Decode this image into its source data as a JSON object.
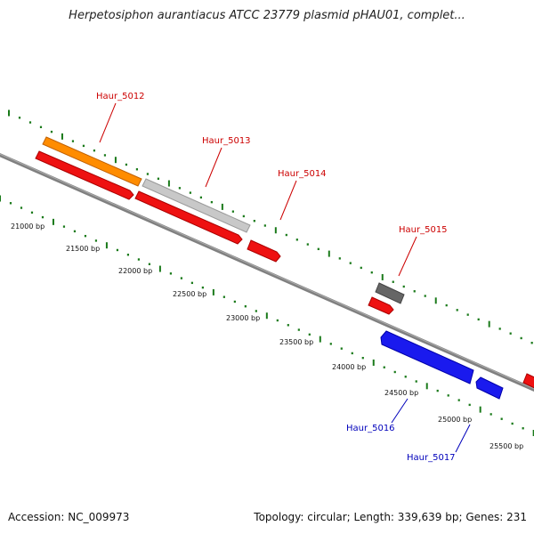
{
  "title": "Herpetosiphon aurantiacus ATCC 23779 plasmid pHAU01, complet...",
  "footer": {
    "accession": "Accession: NC_009973",
    "summary": "Topology: circular; Length: 339,639 bp; Genes: 231"
  },
  "colors": {
    "backbone": "#808080",
    "tick": "#1a7a1a",
    "label_forward": "#cc0000",
    "label_reverse": "#0000bb",
    "orange": "#ff8c00",
    "light_gray": "#c8c8c8",
    "red": "#ee1111",
    "dark_gray": "#666666",
    "blue": "#1a1aee"
  },
  "scale_labels": [
    "21000 bp",
    "21500 bp",
    "22000 bp",
    "22500 bp",
    "23000 bp",
    "23500 bp",
    "24000 bp",
    "24500 bp",
    "25000 bp",
    "25500 bp"
  ],
  "gene_labels": [
    {
      "text": "Haur_5012",
      "strand": "forward"
    },
    {
      "text": "Haur_5013",
      "strand": "forward"
    },
    {
      "text": "Haur_5014",
      "strand": "forward"
    },
    {
      "text": "Haur_5015",
      "strand": "forward"
    },
    {
      "text": "Haur_5016",
      "strand": "reverse"
    },
    {
      "text": "Haur_5017",
      "strand": "reverse"
    }
  ]
}
